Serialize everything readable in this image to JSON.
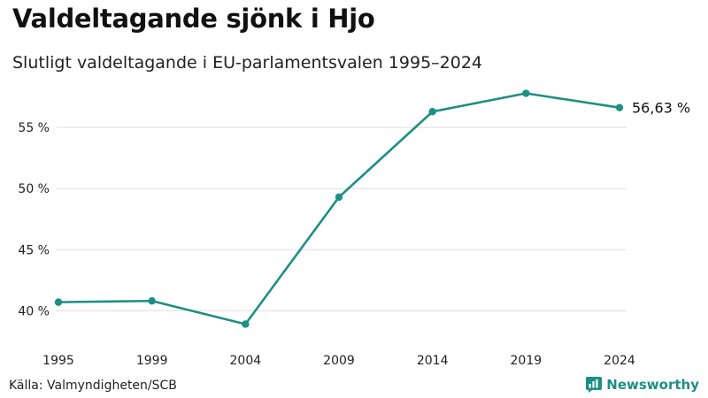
{
  "header": {
    "title": "Valdeltagande sjönk i Hjo",
    "subtitle": "Slutligt valdeltagande i EU-parlamentsvalen 1995–2024"
  },
  "footer": {
    "source": "Källa: Valmyndigheten/SCB",
    "brand": "Newsworthy",
    "brand_icon": "newsworthy-logo-icon"
  },
  "colors": {
    "line": "#1e8f84",
    "grid": "#dddddd",
    "text": "#222222"
  },
  "chart_data": {
    "type": "line",
    "title": "Valdeltagande sjönk i Hjo",
    "subtitle": "Slutligt valdeltagande i EU-parlamentsvalen 1995–2024",
    "xlabel": "",
    "ylabel": "",
    "categories": [
      "1995",
      "1999",
      "2004",
      "2009",
      "2014",
      "2019",
      "2024"
    ],
    "series": [
      {
        "name": "Valdeltagande",
        "values": [
          40.7,
          40.8,
          38.9,
          49.3,
          56.3,
          57.8,
          56.63
        ]
      }
    ],
    "yticks": [
      40,
      45,
      50,
      55
    ],
    "ytick_labels": [
      "40 %",
      "45 %",
      "50 %",
      "55 %"
    ],
    "ylim": [
      38.5,
      58.2
    ],
    "grid": true,
    "end_label": "56,63 %"
  }
}
